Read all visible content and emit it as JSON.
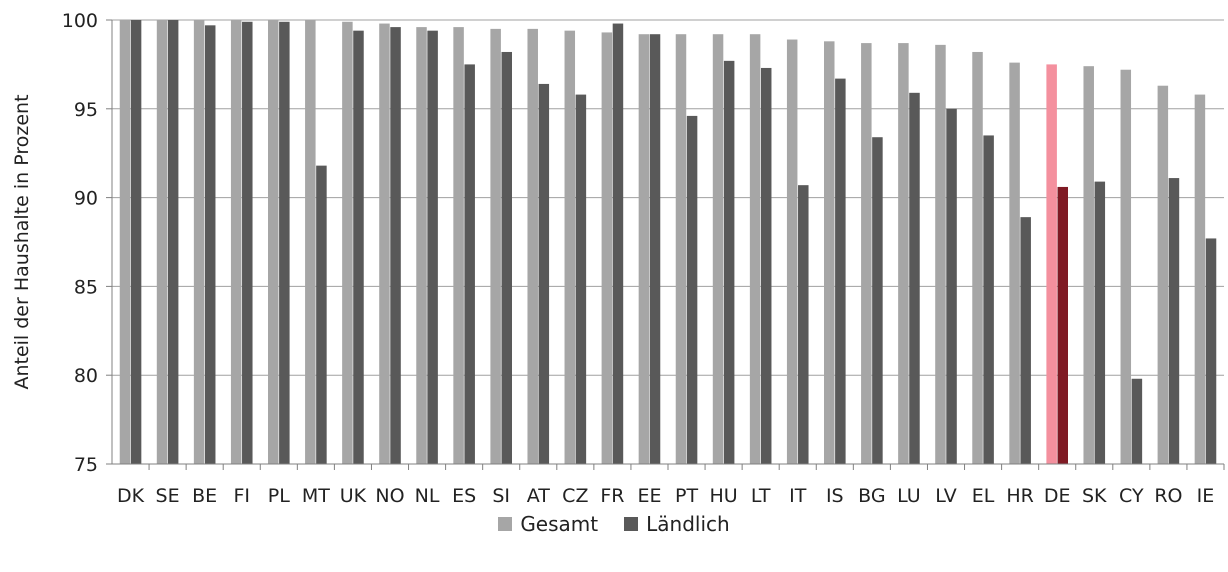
{
  "chart_data": {
    "type": "bar",
    "title": "",
    "xlabel": "",
    "ylabel": "Anteil der Haushalte in Prozent",
    "ylim": [
      75,
      100
    ],
    "yticks": [
      75,
      80,
      85,
      90,
      95,
      100
    ],
    "grid": true,
    "legend_position": "bottom",
    "categories": [
      "DK",
      "SE",
      "BE",
      "FI",
      "PL",
      "MT",
      "UK",
      "NO",
      "NL",
      "ES",
      "SI",
      "AT",
      "CZ",
      "FR",
      "EE",
      "PT",
      "HU",
      "LT",
      "IT",
      "IS",
      "BG",
      "LU",
      "LV",
      "EL",
      "HR",
      "DE",
      "SK",
      "CY",
      "RO",
      "IE"
    ],
    "highlight_category": "DE",
    "series": [
      {
        "name": "Gesamt",
        "color": "#A6A6A6",
        "highlight_color": "#F4909E",
        "values": [
          100,
          100,
          100,
          100,
          100,
          100,
          99.9,
          99.8,
          99.6,
          99.6,
          99.5,
          99.5,
          99.4,
          99.3,
          99.2,
          99.2,
          99.2,
          99.2,
          98.9,
          98.8,
          98.7,
          98.7,
          98.6,
          98.2,
          97.6,
          97.5,
          97.4,
          97.2,
          96.3,
          95.8
        ]
      },
      {
        "name": "Ländlich",
        "color": "#595959",
        "highlight_color": "#7F1A24",
        "values": [
          100,
          100,
          99.7,
          99.9,
          99.9,
          91.8,
          99.4,
          99.6,
          99.4,
          97.5,
          98.2,
          96.4,
          95.8,
          99.8,
          99.2,
          94.6,
          97.7,
          97.3,
          90.7,
          96.7,
          93.4,
          95.9,
          95.0,
          93.5,
          88.9,
          90.6,
          90.9,
          79.8,
          91.1,
          87.7
        ]
      }
    ]
  }
}
